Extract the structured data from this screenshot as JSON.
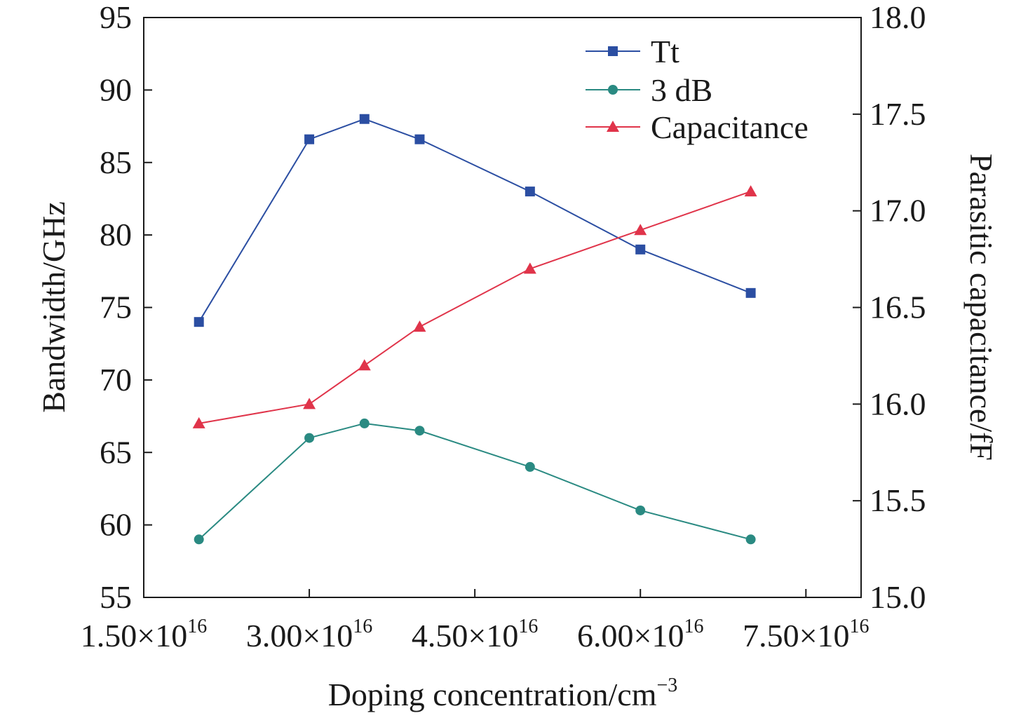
{
  "chart_data": {
    "type": "line",
    "xlabel": "Doping concentration/cm",
    "xlabel_sup": "−3",
    "ylabel": "Bandwidth/GHz",
    "y2label": "Parasitic capacitance/fF",
    "xlim": [
      1.5e+16,
      8e+16
    ],
    "ylim": [
      55,
      95
    ],
    "y2lim": [
      15.0,
      18.0
    ],
    "xticks": [
      {
        "value": 1.5e+16,
        "mantissa": "1.50×10",
        "exp": "16"
      },
      {
        "value": 3e+16,
        "mantissa": "3.00×10",
        "exp": "16"
      },
      {
        "value": 4.5e+16,
        "mantissa": "4.50×10",
        "exp": "16"
      },
      {
        "value": 6e+16,
        "mantissa": "6.00×10",
        "exp": "16"
      },
      {
        "value": 7.5e+16,
        "mantissa": "7.50×10",
        "exp": "16"
      }
    ],
    "yticks": [
      "55",
      "60",
      "65",
      "70",
      "75",
      "80",
      "85",
      "90",
      "95"
    ],
    "y2ticks": [
      "15.0",
      "15.5",
      "16.0",
      "16.5",
      "17.0",
      "17.5",
      "18.0"
    ],
    "x": [
      2e+16,
      3e+16,
      3.5e+16,
      4e+16,
      5e+16,
      6e+16,
      7e+16
    ],
    "series": [
      {
        "name": "Tt",
        "axis": "left",
        "marker": "square",
        "color": "#2b4ea2",
        "values": [
          74,
          86.6,
          88,
          86.6,
          83,
          79,
          76
        ]
      },
      {
        "name": "3 dB",
        "axis": "left",
        "marker": "circle",
        "color": "#2a8a82",
        "values": [
          59,
          66,
          67,
          66.5,
          64,
          61,
          59
        ]
      },
      {
        "name": "Capacitance",
        "axis": "right",
        "marker": "triangle",
        "color": "#e0344a",
        "values": [
          15.9,
          16.0,
          16.2,
          16.4,
          16.7,
          16.9,
          17.1
        ]
      }
    ],
    "legend_position": "top-right",
    "grid": false
  }
}
